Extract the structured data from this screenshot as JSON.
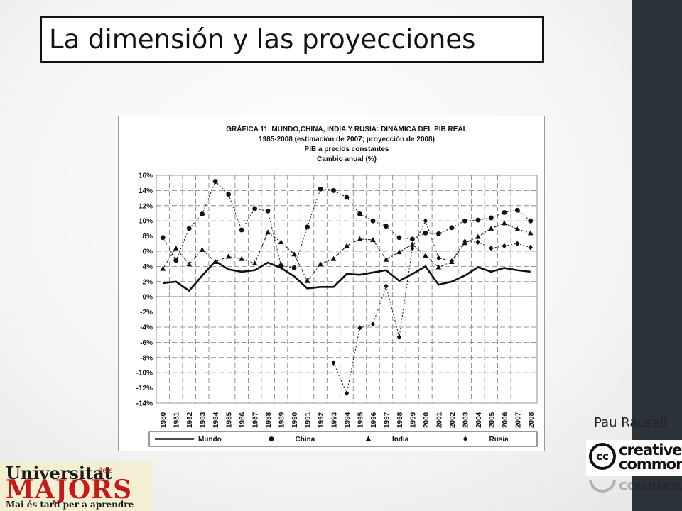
{
  "slide": {
    "title": "La dimensión y las proyecciones",
    "author": "Pau Rausell",
    "cc_logo": {
      "word_top": "creative",
      "word_bottom": "commons",
      "circle_text": "cc"
    },
    "university_logo": {
      "line1": "Universitat",
      "line1_small": "dels",
      "line2": "MAJORS",
      "line3": "Mai és tard per a aprendre"
    }
  },
  "chart_data": {
    "type": "line",
    "title_lines": [
      "GRÁFICA 11. MUNDO,CHINA, INDIA Y RUSIA: DINÁMICA DEL PIB REAL",
      "1985-2008 (estimación de 2007; proyección de 2008)",
      "PIB a precios constantes",
      "Cambio anual (%)"
    ],
    "x": [
      "1980",
      "1981",
      "1982",
      "1983",
      "1984",
      "1985",
      "1986",
      "1987",
      "1988",
      "1989",
      "1990",
      "1991",
      "1992",
      "1993",
      "1994",
      "1995",
      "1996",
      "1997",
      "1998",
      "1999",
      "2000",
      "2001",
      "2002",
      "2003",
      "2004",
      "2005",
      "2006",
      "2007",
      "2008"
    ],
    "ylim": [
      -14,
      16
    ],
    "yticks": [
      16,
      14,
      12,
      10,
      8,
      6,
      4,
      2,
      0,
      -2,
      -4,
      -6,
      -8,
      -10,
      -12,
      -14
    ],
    "ytick_labels": [
      "16%",
      "14%",
      "12%",
      "10%",
      "8%",
      "6%",
      "4%",
      "2%",
      "0%",
      "-2%",
      "-4%",
      "-6%",
      "-8%",
      "-10%",
      "-12%",
      "-14%"
    ],
    "grid": true,
    "legend_position": "bottom",
    "series": [
      {
        "name": "Mundo",
        "style": "solid",
        "marker": "none",
        "values": [
          1.8,
          2.0,
          0.8,
          2.8,
          4.7,
          3.6,
          3.3,
          3.5,
          4.5,
          3.8,
          2.7,
          1.1,
          1.3,
          1.3,
          3.0,
          2.9,
          3.2,
          3.5,
          2.1,
          3.0,
          4.0,
          1.6,
          2.0,
          2.8,
          3.9,
          3.3,
          3.8,
          3.5,
          3.3
        ]
      },
      {
        "name": "China",
        "style": "dotted",
        "marker": "circle",
        "values": [
          7.8,
          4.8,
          9.0,
          10.9,
          15.2,
          13.5,
          8.8,
          11.6,
          11.3,
          4.1,
          3.8,
          9.2,
          14.2,
          14.0,
          13.1,
          10.9,
          10.0,
          9.3,
          7.8,
          7.6,
          8.4,
          8.3,
          9.1,
          10.0,
          10.1,
          10.4,
          11.1,
          11.4,
          10.0
        ]
      },
      {
        "name": "India",
        "style": "dash-dot",
        "marker": "triangle",
        "values": [
          3.7,
          6.4,
          4.3,
          6.2,
          4.6,
          5.3,
          5.0,
          4.4,
          8.5,
          7.2,
          5.6,
          2.1,
          4.3,
          5.0,
          6.7,
          7.6,
          7.5,
          4.9,
          5.9,
          6.9,
          5.4,
          3.9,
          4.6,
          7.1,
          7.9,
          9.0,
          9.7,
          8.9,
          8.4
        ]
      },
      {
        "name": "Rusia",
        "style": "dotted",
        "marker": "diamond",
        "values": [
          null,
          null,
          null,
          null,
          null,
          null,
          null,
          null,
          null,
          null,
          null,
          null,
          null,
          -8.7,
          -12.7,
          -4.1,
          -3.6,
          1.4,
          -5.3,
          6.4,
          10.0,
          5.1,
          4.7,
          7.3,
          7.2,
          6.4,
          6.7,
          7.0,
          6.5
        ]
      }
    ]
  }
}
